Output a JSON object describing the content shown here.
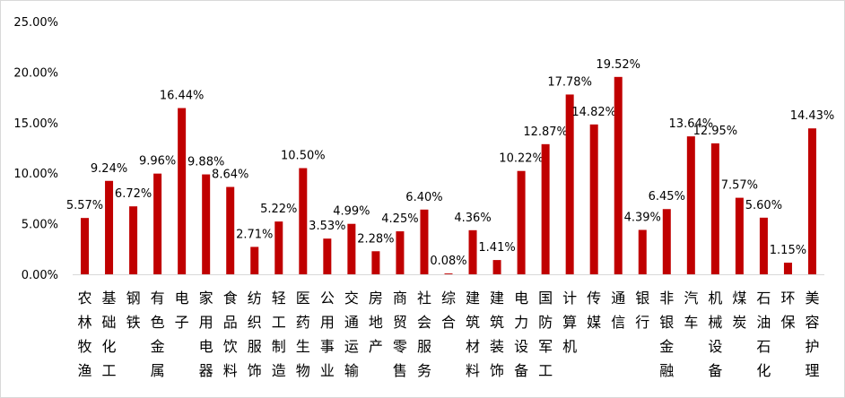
{
  "chart_data": {
    "type": "bar",
    "title": "",
    "xlabel": "",
    "ylabel": "",
    "ylim": [
      0,
      25
    ],
    "yticks": [
      "0.00%",
      "5.00%",
      "10.00%",
      "15.00%",
      "20.00%",
      "25.00%"
    ],
    "grid": false,
    "legend": "none",
    "bar_color": "#c00000",
    "categories": [
      "农林牧渔",
      "基础化工",
      "钢铁",
      "有色金属",
      "电子",
      "家用电器",
      "食品饮料",
      "纺织服饰",
      "轻工制造",
      "医药生物",
      "公用事业",
      "交通运输",
      "房地产",
      "商贸零售",
      "社会服务",
      "综合",
      "建筑材料",
      "建筑装饰",
      "电力设备",
      "国防军工",
      "计算机",
      "传媒",
      "通信",
      "银行",
      "非银金融",
      "汽车",
      "机械设备",
      "煤炭",
      "石油石化",
      "环保",
      "美容护理"
    ],
    "values": [
      5.57,
      9.24,
      6.72,
      9.96,
      16.44,
      9.88,
      8.64,
      2.71,
      5.22,
      10.5,
      3.53,
      4.99,
      2.28,
      4.25,
      6.4,
      0.08,
      4.36,
      1.41,
      10.22,
      12.87,
      17.78,
      14.82,
      19.52,
      4.39,
      6.45,
      13.64,
      12.95,
      7.57,
      5.6,
      1.15,
      14.43
    ],
    "data_labels": [
      "5.57%",
      "9.24%",
      "6.72%",
      "9.96%",
      "16.44%",
      "9.88%",
      "8.64%",
      "2.71%",
      "5.22%",
      "10.50%",
      "3.53%",
      "4.99%",
      "2.28%",
      "4.25%",
      "6.40%",
      "0.08%",
      "4.36%",
      "1.41%",
      "10.22%",
      "12.87%",
      "17.78%",
      "14.82%",
      "19.52%",
      "4.39%",
      "6.45%",
      "13.64%",
      "12.95%",
      "7.57%",
      "5.60%",
      "1.15%",
      "14.43%"
    ]
  }
}
